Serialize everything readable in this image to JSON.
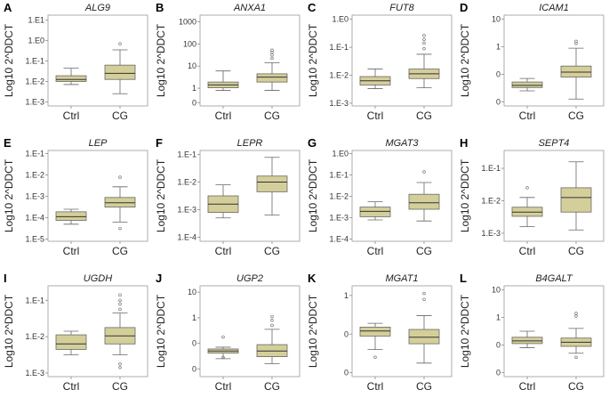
{
  "figure": {
    "ylabel": "Log10 2^DDCT",
    "groups": [
      "Ctrl",
      "CG"
    ]
  },
  "chart_data": [
    {
      "letter": "A",
      "type": "box",
      "title": "ALG9",
      "ylabel": "Log10 2^DDCT",
      "categories": [
        "Ctrl",
        "CG"
      ],
      "ylim": [
        -3.2,
        1.25
      ],
      "yticks": [
        {
          "v": 1,
          "l": "1.E1"
        },
        {
          "v": 0,
          "l": "1.E0"
        },
        {
          "v": -1,
          "l": "1.E-1"
        },
        {
          "v": -2,
          "l": "1.E-2"
        },
        {
          "v": -3,
          "l": "1.E-3"
        }
      ],
      "boxes": [
        {
          "name": "Ctrl",
          "min": -2.15,
          "q1": -2.0,
          "med": -1.9,
          "q3": -1.72,
          "max": -1.35,
          "outliers": []
        },
        {
          "name": "CG",
          "min": -2.6,
          "q1": -1.9,
          "med": -1.6,
          "q3": -1.2,
          "max": -0.45,
          "outliers": [
            -0.15
          ]
        }
      ]
    },
    {
      "letter": "B",
      "type": "box",
      "title": "ANXA1",
      "ylabel": "Log10 2^DDCT",
      "categories": [
        "Ctrl",
        "CG"
      ],
      "ylim": [
        -0.8,
        3.3
      ],
      "yticks": [
        {
          "v": 3,
          "l": "1000"
        },
        {
          "v": 2,
          "l": "100"
        },
        {
          "v": 1,
          "l": "10"
        },
        {
          "v": 0,
          "l": "1"
        },
        {
          "v": -0.65,
          "l": "0"
        }
      ],
      "boxes": [
        {
          "name": "Ctrl",
          "min": -0.1,
          "q1": 0.02,
          "med": 0.15,
          "q3": 0.28,
          "max": 0.78,
          "outliers": []
        },
        {
          "name": "CG",
          "min": -0.1,
          "q1": 0.28,
          "med": 0.5,
          "q3": 0.65,
          "max": 1.15,
          "outliers": [
            1.35,
            1.5,
            1.62,
            1.72
          ]
        }
      ]
    },
    {
      "letter": "C",
      "type": "box",
      "title": "FUT8",
      "ylabel": "Log10 2^DDCT",
      "categories": [
        "Ctrl",
        "CG"
      ],
      "ylim": [
        -3.1,
        0.15
      ],
      "yticks": [
        {
          "v": 0,
          "l": "1.E0"
        },
        {
          "v": -1,
          "l": "1.E-1"
        },
        {
          "v": -2,
          "l": "1.E-2"
        },
        {
          "v": -3,
          "l": "1.E-3"
        }
      ],
      "boxes": [
        {
          "name": "Ctrl",
          "min": -2.48,
          "q1": -2.35,
          "med": -2.2,
          "q3": -2.05,
          "max": -1.78,
          "outliers": []
        },
        {
          "name": "CG",
          "min": -2.45,
          "q1": -2.12,
          "med": -1.95,
          "q3": -1.78,
          "max": -1.25,
          "outliers": [
            -1.05,
            -0.85,
            -0.72,
            -0.58
          ]
        }
      ]
    },
    {
      "letter": "D",
      "type": "box",
      "title": "ICAM1",
      "ylabel": "Log10 2^DDCT",
      "categories": [
        "Ctrl",
        "CG"
      ],
      "ylim": [
        -1.15,
        2.15
      ],
      "yticks": [
        {
          "v": 2,
          "l": "10"
        },
        {
          "v": 1,
          "l": "1"
        },
        {
          "v": 0,
          "l": "0"
        },
        {
          "v": -1,
          "l": "0"
        }
      ],
      "boxes": [
        {
          "name": "Ctrl",
          "min": -0.6,
          "q1": -0.48,
          "med": -0.4,
          "q3": -0.28,
          "max": -0.15,
          "outliers": []
        },
        {
          "name": "CG",
          "min": -0.9,
          "q1": -0.1,
          "med": 0.08,
          "q3": 0.3,
          "max": 0.95,
          "outliers": [
            1.12,
            1.2
          ]
        }
      ]
    },
    {
      "letter": "E",
      "type": "box",
      "title": "LEP",
      "ylabel": "Log10 2^DDCT",
      "categories": [
        "Ctrl",
        "CG"
      ],
      "ylim": [
        -5.1,
        -0.85
      ],
      "yticks": [
        {
          "v": -1,
          "l": "1.E-1"
        },
        {
          "v": -2,
          "l": "1.E-2"
        },
        {
          "v": -3,
          "l": "1.E-3"
        },
        {
          "v": -4,
          "l": "1.E-4"
        },
        {
          "v": -5,
          "l": "1.E-5"
        }
      ],
      "boxes": [
        {
          "name": "Ctrl",
          "min": -4.3,
          "q1": -4.12,
          "med": -3.95,
          "q3": -3.72,
          "max": -3.6,
          "outliers": []
        },
        {
          "name": "CG",
          "min": -4.2,
          "q1": -3.5,
          "med": -3.3,
          "q3": -3.05,
          "max": -2.55,
          "outliers": [
            -2.1,
            -4.5
          ]
        }
      ]
    },
    {
      "letter": "F",
      "type": "box",
      "title": "LEPR",
      "ylabel": "Log10 2^DDCT",
      "categories": [
        "Ctrl",
        "CG"
      ],
      "ylim": [
        -4.15,
        -0.85
      ],
      "yticks": [
        {
          "v": -1,
          "l": "1.E-1"
        },
        {
          "v": -2,
          "l": "1.E-2"
        },
        {
          "v": -3,
          "l": "1.E-3"
        },
        {
          "v": -4,
          "l": "1.E-4"
        }
      ],
      "boxes": [
        {
          "name": "Ctrl",
          "min": -3.3,
          "q1": -3.1,
          "med": -2.8,
          "q3": -2.5,
          "max": -2.1,
          "outliers": []
        },
        {
          "name": "CG",
          "min": -3.2,
          "q1": -2.35,
          "med": -2.0,
          "q3": -1.78,
          "max": -1.1,
          "outliers": []
        }
      ]
    },
    {
      "letter": "G",
      "type": "box",
      "title": "MGAT3",
      "ylabel": "Log10 2^DDCT",
      "categories": [
        "Ctrl",
        "CG"
      ],
      "ylim": [
        -4.1,
        0.15
      ],
      "yticks": [
        {
          "v": 0,
          "l": "1.E0"
        },
        {
          "v": -1,
          "l": "1.E-1"
        },
        {
          "v": -2,
          "l": "1.E-2"
        },
        {
          "v": -3,
          "l": "1.E-3"
        },
        {
          "v": -4,
          "l": "1.E-4"
        }
      ],
      "boxes": [
        {
          "name": "Ctrl",
          "min": -3.1,
          "q1": -2.95,
          "med": -2.7,
          "q3": -2.5,
          "max": -2.25,
          "outliers": []
        },
        {
          "name": "CG",
          "min": -3.15,
          "q1": -2.6,
          "med": -2.3,
          "q3": -1.9,
          "max": -1.35,
          "outliers": [
            -0.85
          ]
        }
      ]
    },
    {
      "letter": "H",
      "type": "box",
      "title": "SEPT4",
      "ylabel": "Log10 2^DDCT",
      "categories": [
        "Ctrl",
        "CG"
      ],
      "ylim": [
        -3.25,
        -0.45
      ],
      "yticks": [
        {
          "v": -1,
          "l": "1.E-1"
        },
        {
          "v": -2,
          "l": "1.E-2"
        },
        {
          "v": -3,
          "l": "1.E-3"
        }
      ],
      "boxes": [
        {
          "name": "Ctrl",
          "min": -2.8,
          "q1": -2.48,
          "med": -2.35,
          "q3": -2.2,
          "max": -1.9,
          "outliers": [
            -1.6
          ]
        },
        {
          "name": "CG",
          "min": -2.9,
          "q1": -2.35,
          "med": -1.9,
          "q3": -1.6,
          "max": -0.8,
          "outliers": []
        }
      ]
    },
    {
      "letter": "I",
      "type": "box",
      "title": "UGDH",
      "ylabel": "Log10 2^DDCT",
      "categories": [
        "Ctrl",
        "CG"
      ],
      "ylim": [
        -3.1,
        -0.6
      ],
      "yticks": [
        {
          "v": -1,
          "l": "1.E-1"
        },
        {
          "v": -2,
          "l": "1.E-2"
        },
        {
          "v": -3,
          "l": "1.E-3"
        }
      ],
      "boxes": [
        {
          "name": "Ctrl",
          "min": -2.5,
          "q1": -2.35,
          "med": -2.2,
          "q3": -1.95,
          "max": -1.85,
          "outliers": []
        },
        {
          "name": "CG",
          "min": -2.5,
          "q1": -2.2,
          "med": -1.98,
          "q3": -1.75,
          "max": -1.35,
          "outliers": [
            -0.85,
            -1.0,
            -1.1,
            -1.25,
            -2.75,
            -2.85
          ]
        }
      ]
    },
    {
      "letter": "J",
      "type": "box",
      "title": "UGP2",
      "ylabel": "Log10 2^DDCT",
      "categories": [
        "Ctrl",
        "CG"
      ],
      "ylim": [
        -1.3,
        2.25
      ],
      "yticks": [
        {
          "v": 2,
          "l": "10"
        },
        {
          "v": 1,
          "l": "1"
        },
        {
          "v": 0,
          "l": "0"
        },
        {
          "v": -1,
          "l": "0"
        }
      ],
      "boxes": [
        {
          "name": "Ctrl",
          "min": -0.6,
          "q1": -0.38,
          "med": -0.3,
          "q3": -0.22,
          "max": -0.15,
          "outliers": [
            0.25,
            -0.55
          ]
        },
        {
          "name": "CG",
          "min": -0.8,
          "q1": -0.52,
          "med": -0.3,
          "q3": -0.05,
          "max": 0.55,
          "outliers": [
            0.7,
            0.9,
            1.05
          ]
        }
      ]
    },
    {
      "letter": "K",
      "type": "box",
      "title": "MGAT1",
      "ylabel": "Log10 2^DDCT",
      "categories": [
        "Ctrl",
        "CG"
      ],
      "ylim": [
        -1.1,
        1.25
      ],
      "yticks": [
        {
          "v": 1,
          "l": "1"
        },
        {
          "v": 0,
          "l": "0"
        },
        {
          "v": -1,
          "l": "0"
        }
      ],
      "boxes": [
        {
          "name": "Ctrl",
          "min": -0.4,
          "q1": -0.05,
          "med": 0.08,
          "q3": 0.18,
          "max": 0.28,
          "outliers": [
            -0.6
          ]
        },
        {
          "name": "CG",
          "min": -0.75,
          "q1": -0.25,
          "med": -0.08,
          "q3": 0.12,
          "max": 0.48,
          "outliers": [
            0.9,
            1.05
          ]
        }
      ]
    },
    {
      "letter": "L",
      "type": "box",
      "title": "B4GALT",
      "ylabel": "Log10 2^DDCT",
      "categories": [
        "Ctrl",
        "CG"
      ],
      "ylim": [
        -1.15,
        2.15
      ],
      "yticks": [
        {
          "v": 2,
          "l": "10"
        },
        {
          "v": 1,
          "l": "1"
        },
        {
          "v": 0,
          "l": "0"
        },
        {
          "v": -1,
          "l": "0"
        }
      ],
      "boxes": [
        {
          "name": "Ctrl",
          "min": -0.1,
          "q1": 0.05,
          "med": 0.15,
          "q3": 0.28,
          "max": 0.5,
          "outliers": []
        },
        {
          "name": "CG",
          "min": -0.3,
          "q1": -0.05,
          "med": 0.1,
          "q3": 0.25,
          "max": 0.6,
          "outliers": [
            -0.45,
            1.05,
            1.15
          ]
        }
      ]
    }
  ]
}
